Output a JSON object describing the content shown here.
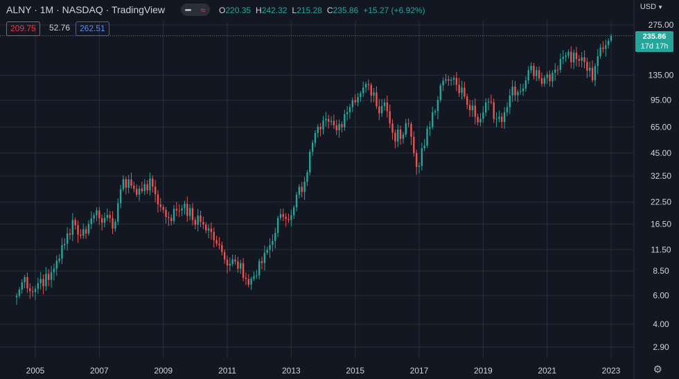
{
  "header": {
    "title": "ALNY · 1M · NASDAQ · TradingView",
    "ohlc": {
      "o_label": "O",
      "o_value": "220.35",
      "h_label": "H",
      "h_value": "242.32",
      "l_label": "L",
      "l_value": "215.28",
      "c_label": "C",
      "c_value": "235.86",
      "change": "+15.27 (+6.92%)"
    },
    "bid": "209.75",
    "spread": "52.76",
    "ask": "262.51",
    "currency": "USD",
    "toggle_icons": [
      "minus-icon",
      "wave-icon"
    ],
    "settings_icon": "gear-icon"
  },
  "price_tag": {
    "price": "235.86",
    "countdown": "17d 17h"
  },
  "colors": {
    "up": "#26a69a",
    "down": "#ef5350",
    "background": "#131722",
    "grid": "#2a2e39",
    "last_price_line": "#26a69a"
  },
  "chart_data": {
    "type": "candlestick",
    "title": "ALNY · 1M · NASDAQ · TradingView",
    "interval": "1M",
    "x_type": "date",
    "x_ticks": [
      "2005",
      "2007",
      "2009",
      "2011",
      "2013",
      "2015",
      "2017",
      "2019",
      "2021",
      "2023"
    ],
    "y_scale": "log",
    "y_ticks": [
      2.9,
      4.0,
      6.0,
      8.5,
      11.5,
      16.5,
      22.5,
      32.5,
      45.0,
      65.0,
      95.0,
      135.0,
      275.0
    ],
    "y_tick_labels": [
      "2.90",
      "4.00",
      "6.00",
      "8.50",
      "11.50",
      "16.50",
      "22.50",
      "32.50",
      "45.00",
      "65.00",
      "95.00",
      "135.00",
      "275.00"
    ],
    "ylim": [
      2.5,
      300
    ],
    "last_price": 235.86,
    "grid": true,
    "anchors": [
      {
        "date": "2004-06",
        "close": 6.0
      },
      {
        "date": "2004-09",
        "close": 7.8
      },
      {
        "date": "2004-12",
        "close": 6.3
      },
      {
        "date": "2005-03",
        "close": 7.6
      },
      {
        "date": "2005-06",
        "close": 7.5
      },
      {
        "date": "2005-09",
        "close": 9.8
      },
      {
        "date": "2005-12",
        "close": 12.5
      },
      {
        "date": "2006-03",
        "close": 17.5
      },
      {
        "date": "2006-06",
        "close": 14.0
      },
      {
        "date": "2006-09",
        "close": 16.5
      },
      {
        "date": "2006-12",
        "close": 20.0
      },
      {
        "date": "2007-03",
        "close": 18.0
      },
      {
        "date": "2007-06",
        "close": 15.5
      },
      {
        "date": "2007-09",
        "close": 27.0
      },
      {
        "date": "2007-12",
        "close": 31.0
      },
      {
        "date": "2008-03",
        "close": 25.0
      },
      {
        "date": "2008-06",
        "close": 29.0
      },
      {
        "date": "2008-09",
        "close": 28.0
      },
      {
        "date": "2008-12",
        "close": 21.0
      },
      {
        "date": "2009-03",
        "close": 18.0
      },
      {
        "date": "2009-06",
        "close": 20.0
      },
      {
        "date": "2009-09",
        "close": 22.0
      },
      {
        "date": "2009-12",
        "close": 17.5
      },
      {
        "date": "2010-03",
        "close": 17.0
      },
      {
        "date": "2010-06",
        "close": 15.5
      },
      {
        "date": "2010-09",
        "close": 12.5
      },
      {
        "date": "2010-12",
        "close": 10.0
      },
      {
        "date": "2011-03",
        "close": 10.0
      },
      {
        "date": "2011-06",
        "close": 9.5
      },
      {
        "date": "2011-09",
        "close": 7.0
      },
      {
        "date": "2011-12",
        "close": 8.0
      },
      {
        "date": "2012-03",
        "close": 11.0
      },
      {
        "date": "2012-06",
        "close": 13.0
      },
      {
        "date": "2012-09",
        "close": 19.0
      },
      {
        "date": "2012-12",
        "close": 17.5
      },
      {
        "date": "2013-03",
        "close": 25.0
      },
      {
        "date": "2013-06",
        "close": 30.0
      },
      {
        "date": "2013-09",
        "close": 52.0
      },
      {
        "date": "2013-12",
        "close": 63.0
      },
      {
        "date": "2014-03",
        "close": 70.0
      },
      {
        "date": "2014-06",
        "close": 62.0
      },
      {
        "date": "2014-09",
        "close": 78.0
      },
      {
        "date": "2014-12",
        "close": 95.0
      },
      {
        "date": "2015-03",
        "close": 105.0
      },
      {
        "date": "2015-06",
        "close": 118.0
      },
      {
        "date": "2015-09",
        "close": 87.0
      },
      {
        "date": "2015-12",
        "close": 92.0
      },
      {
        "date": "2016-03",
        "close": 60.0
      },
      {
        "date": "2016-06",
        "close": 55.0
      },
      {
        "date": "2016-09",
        "close": 68.0
      },
      {
        "date": "2016-12",
        "close": 37.0
      },
      {
        "date": "2017-03",
        "close": 50.0
      },
      {
        "date": "2017-06",
        "close": 80.0
      },
      {
        "date": "2017-09",
        "close": 117.0
      },
      {
        "date": "2017-12",
        "close": 125.0
      },
      {
        "date": "2018-03",
        "close": 118.0
      },
      {
        "date": "2018-06",
        "close": 100.0
      },
      {
        "date": "2018-09",
        "close": 88.0
      },
      {
        "date": "2018-12",
        "close": 73.0
      },
      {
        "date": "2019-03",
        "close": 93.0
      },
      {
        "date": "2019-06",
        "close": 73.0
      },
      {
        "date": "2019-09",
        "close": 80.0
      },
      {
        "date": "2019-12",
        "close": 115.0
      },
      {
        "date": "2020-03",
        "close": 108.0
      },
      {
        "date": "2020-06",
        "close": 145.0
      },
      {
        "date": "2020-09",
        "close": 145.0
      },
      {
        "date": "2020-12",
        "close": 130.0
      },
      {
        "date": "2021-03",
        "close": 140.0
      },
      {
        "date": "2021-06",
        "close": 170.0
      },
      {
        "date": "2021-09",
        "close": 188.0
      },
      {
        "date": "2021-12",
        "close": 170.0
      },
      {
        "date": "2022-03",
        "close": 163.0
      },
      {
        "date": "2022-06",
        "close": 126.0
      },
      {
        "date": "2022-09",
        "close": 200.0
      },
      {
        "date": "2022-12",
        "close": 220.0
      },
      {
        "date": "2023-01",
        "close": 235.86
      }
    ]
  }
}
